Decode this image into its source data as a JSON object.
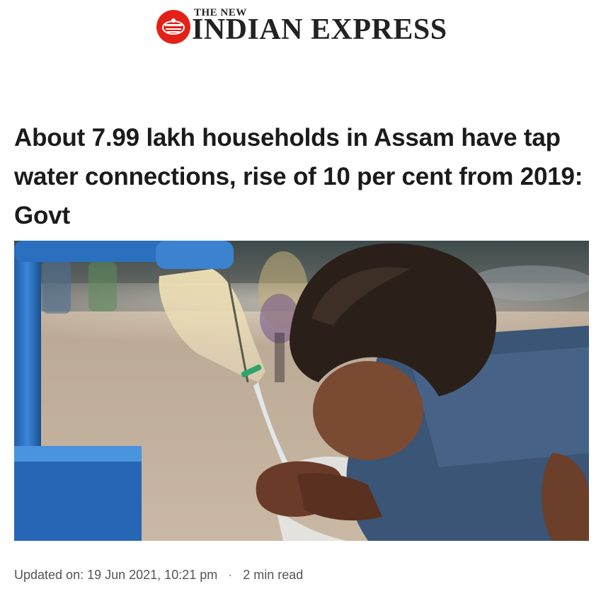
{
  "masthead": {
    "logo_top": "THE NEW",
    "logo_main": "INDIAN EXPRESS",
    "brand_red": "#e32119"
  },
  "article": {
    "headline": "About 7.99 lakh households in Assam have tap water connections, rise of 10 per cent from 2019: Govt",
    "image_alt": "Boy drinking water from a public tap",
    "updated_label": "Updated on:",
    "updated_date": "19 Jun 2021, 10:21 pm",
    "separator": "·",
    "read_time": "2 min read"
  }
}
